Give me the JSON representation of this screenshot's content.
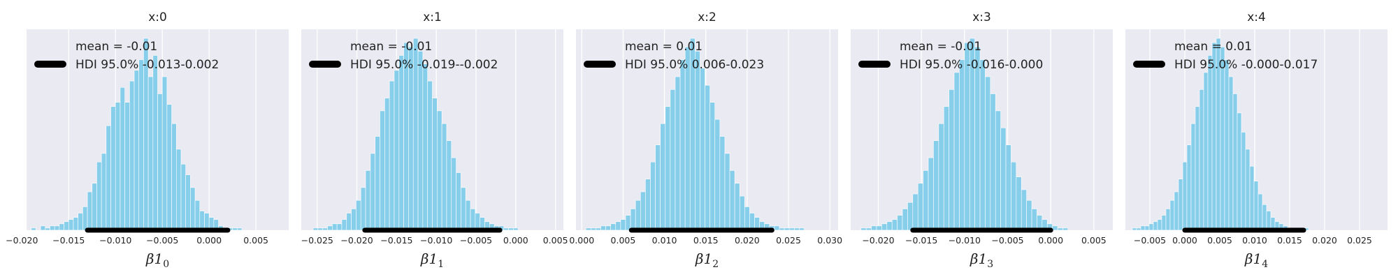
{
  "chart_data": [
    {
      "type": "bar",
      "title": "x:0",
      "xlabel_base": "β1",
      "xlabel_sub": "0",
      "xlim": [
        -0.0195,
        0.0085
      ],
      "xticks": [
        -0.02,
        -0.015,
        -0.01,
        -0.005,
        0.0,
        0.005
      ],
      "tick_labels": [
        "−0.020",
        "−0.015",
        "−0.010",
        "−0.005",
        "0.000",
        "0.005"
      ],
      "bin_start": -0.019,
      "bin_width": 0.0005,
      "counts": [
        1,
        0,
        2,
        1,
        2,
        2,
        3,
        4,
        5,
        6,
        8,
        11,
        18,
        22,
        32,
        36,
        49,
        58,
        60,
        67,
        60,
        70,
        75,
        80,
        90,
        72,
        82,
        64,
        72,
        59,
        50,
        38,
        31,
        26,
        20,
        14,
        9,
        8,
        6,
        5,
        2,
        1,
        1,
        1,
        1
      ],
      "hdi": [
        -0.013,
        0.002
      ],
      "legend_line": "mean = -0.01",
      "legend_hdi": "HDI 95.0% -0.013-0.002",
      "bar_color": "#87ceeb",
      "hdi_color": "#000000"
    },
    {
      "type": "bar",
      "title": "x:1",
      "xlabel_base": "β1",
      "xlabel_sub": "1",
      "xlim": [
        -0.027,
        0.006
      ],
      "xticks": [
        -0.025,
        -0.02,
        -0.015,
        -0.01,
        -0.005,
        0.0,
        0.005
      ],
      "tick_labels": [
        "−0.025",
        "−0.020",
        "−0.015",
        "−0.010",
        "−0.005",
        "0.000",
        "0.005"
      ],
      "bin_start": -0.0255,
      "bin_width": 0.0006,
      "counts": [
        1,
        1,
        1,
        2,
        3,
        3,
        5,
        8,
        10,
        14,
        20,
        28,
        36,
        44,
        56,
        62,
        70,
        75,
        82,
        88,
        86,
        90,
        84,
        78,
        70,
        62,
        56,
        50,
        42,
        34,
        27,
        20,
        14,
        10,
        8,
        6,
        4,
        3,
        2,
        2,
        1,
        1,
        1
      ],
      "hdi": [
        -0.019,
        -0.002
      ],
      "legend_line": "mean = -0.01",
      "legend_hdi": "HDI 95.0% -0.019--0.002",
      "bar_color": "#87ceeb",
      "hdi_color": "#000000"
    },
    {
      "type": "bar",
      "title": "x:2",
      "xlabel_base": "β1",
      "xlabel_sub": "2",
      "xlim": [
        -0.0007,
        0.031
      ],
      "xticks": [
        0.0,
        0.005,
        0.01,
        0.015,
        0.02,
        0.025,
        0.03
      ],
      "tick_labels": [
        "0.000",
        "0.005",
        "0.010",
        "0.015",
        "0.020",
        "0.025",
        "0.030"
      ],
      "bin_start": 0.0005,
      "bin_width": 0.0006,
      "counts": [
        1,
        1,
        1,
        2,
        2,
        3,
        4,
        5,
        7,
        10,
        14,
        18,
        24,
        32,
        40,
        50,
        58,
        66,
        72,
        80,
        86,
        90,
        84,
        76,
        68,
        60,
        52,
        44,
        36,
        28,
        22,
        16,
        11,
        8,
        6,
        4,
        3,
        2,
        2,
        1,
        1,
        1,
        1,
        1
      ],
      "hdi": [
        0.006,
        0.023
      ],
      "legend_line": "mean = 0.01",
      "legend_hdi": "HDI 95.0% 0.006-0.023",
      "bar_color": "#87ceeb",
      "hdi_color": "#000000"
    },
    {
      "type": "bar",
      "title": "x:3",
      "xlabel_base": "β1",
      "xlabel_sub": "3",
      "xlim": [
        -0.0232,
        0.0072
      ],
      "xticks": [
        -0.02,
        -0.015,
        -0.01,
        -0.005,
        0.0,
        0.005
      ],
      "tick_labels": [
        "−0.020",
        "−0.015",
        "−0.010",
        "−0.005",
        "0.000",
        "0.005"
      ],
      "bin_start": -0.022,
      "bin_width": 0.0006,
      "counts": [
        1,
        1,
        2,
        2,
        3,
        4,
        5,
        7,
        10,
        13,
        17,
        22,
        28,
        34,
        42,
        50,
        58,
        66,
        74,
        80,
        88,
        90,
        86,
        80,
        72,
        64,
        56,
        48,
        40,
        32,
        25,
        19,
        14,
        10,
        7,
        5,
        3,
        2,
        1,
        1
      ],
      "hdi": [
        -0.016,
        0.0
      ],
      "legend_line": "mean = -0.01",
      "legend_hdi": "HDI 95.0% -0.016-0.000",
      "bar_color": "#87ceeb",
      "hdi_color": "#000000"
    },
    {
      "type": "bar",
      "title": "x:4",
      "xlabel_base": "β1",
      "xlabel_sub": "4",
      "xlim": [
        -0.0085,
        0.029
      ],
      "xticks": [
        -0.005,
        0.0,
        0.005,
        0.01,
        0.015,
        0.02,
        0.025
      ],
      "tick_labels": [
        "−0.005",
        "0.000",
        "0.005",
        "0.010",
        "0.015",
        "0.020",
        "0.025"
      ],
      "bin_start": -0.0075,
      "bin_width": 0.0006,
      "counts": [
        1,
        1,
        2,
        2,
        3,
        4,
        5,
        7,
        10,
        14,
        18,
        24,
        32,
        40,
        50,
        58,
        66,
        74,
        82,
        88,
        90,
        86,
        80,
        72,
        64,
        55,
        46,
        38,
        30,
        23,
        17,
        12,
        9,
        6,
        4,
        3,
        2,
        1,
        1,
        1,
        1,
        1
      ],
      "hdi": [
        0.0,
        0.017
      ],
      "legend_line": "mean = 0.01",
      "legend_hdi": "HDI 95.0% -0.000-0.017",
      "bar_color": "#87ceeb",
      "hdi_color": "#000000"
    }
  ]
}
